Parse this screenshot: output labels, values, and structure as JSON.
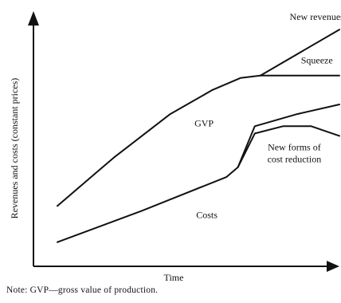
{
  "chart_data": {
    "type": "line",
    "xlabel": "Time",
    "ylabel": "Revenues and costs (constant prices)",
    "xlim": [
      0,
      100
    ],
    "ylim": [
      0,
      100
    ],
    "note": "Note: GVP—gross value of production.",
    "series": [
      {
        "name": "GVP",
        "x": [
          0,
          20,
          40,
          55,
          65,
          72,
          80,
          100
        ],
        "y": [
          24,
          44,
          62,
          72,
          77,
          78,
          78,
          78
        ]
      },
      {
        "name": "New revenues",
        "x": [
          72,
          100
        ],
        "y": [
          78,
          97
        ]
      },
      {
        "name": "Costs",
        "x": [
          0,
          30,
          60,
          64,
          70,
          85,
          100
        ],
        "y": [
          9,
          22,
          36,
          40,
          57,
          62,
          66
        ]
      },
      {
        "name": "New forms of cost reduction",
        "x": [
          64,
          70,
          80,
          90,
          100
        ],
        "y": [
          40,
          54,
          57,
          57,
          53
        ]
      }
    ],
    "annotations": [
      {
        "text": "New revenues",
        "x": 92,
        "y": 101
      },
      {
        "text": "Squeeze",
        "x": 92,
        "y": 83
      },
      {
        "text": "GVP",
        "x": 52,
        "y": 57
      },
      {
        "text": "New forms of",
        "x": 84,
        "y": 47
      },
      {
        "text": "cost reduction",
        "x": 84,
        "y": 42
      },
      {
        "text": "Costs",
        "x": 53,
        "y": 19
      }
    ]
  }
}
